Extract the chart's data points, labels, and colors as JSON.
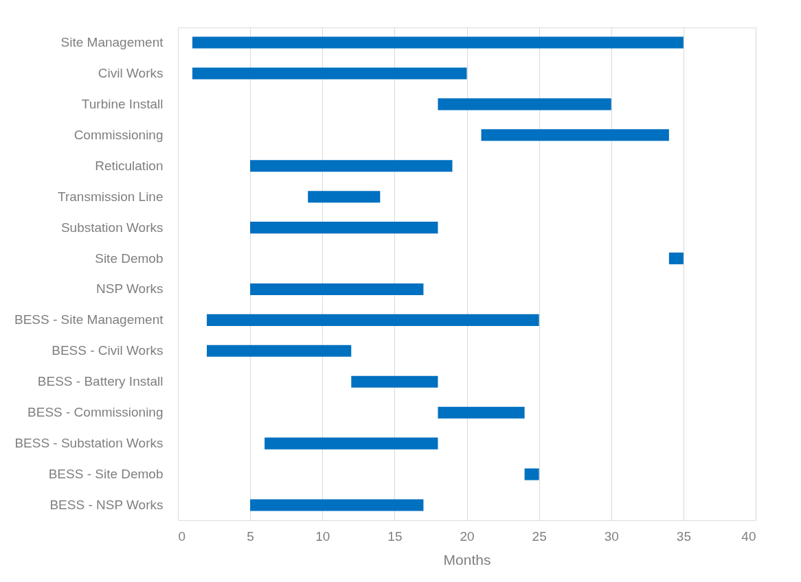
{
  "chart_data": {
    "type": "bar",
    "orientation": "horizontal",
    "xlabel": "Months",
    "categories": [
      "Site Management",
      "Civil Works",
      "Turbine Install",
      "Commissioning",
      "Reticulation",
      "Transmission Line",
      "Substation Works",
      "Site Demob",
      "NSP Works",
      "BESS - Site Management",
      "BESS - Civil Works",
      "BESS - Battery Install",
      "BESS - Commissioning",
      "BESS - Substation Works",
      "BESS - Site Demob",
      "BESS - NSP Works"
    ],
    "base": [
      1,
      1,
      18,
      21,
      5,
      9,
      5,
      34,
      5,
      2,
      2,
      12,
      18,
      6,
      24,
      5
    ],
    "values": [
      34,
      19,
      12,
      13,
      14,
      5,
      13,
      1,
      12,
      23,
      10,
      6,
      6,
      12,
      1,
      12
    ],
    "color": "#0070c0",
    "xlim": [
      0,
      40
    ],
    "xticks": [
      0,
      5,
      10,
      15,
      20,
      25,
      30,
      35,
      40
    ],
    "grid": "x"
  }
}
